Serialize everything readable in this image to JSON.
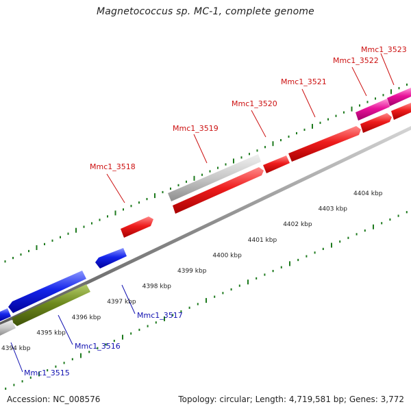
{
  "title": "Magnetococcus sp. MC-1, complete genome",
  "footer": {
    "accession": "Accession: NC_008576",
    "summary": "Topology: circular; Length: 4,719,581 bp; Genes: 3,772"
  },
  "colors": {
    "forward_cds": "#e8121a",
    "forward_other": "#e8129a",
    "reverse_cds": "#1020e0",
    "reverse_other": "#6e8a1e",
    "pseudo": "#c8c8c8",
    "backbone": "#8c8c8c",
    "ticks": "#1d7a1d",
    "forward_label": "#cc1010",
    "reverse_label": "#1010b0"
  },
  "scale": {
    "unit": "kbp",
    "ticks": [
      4394,
      4395,
      4396,
      4397,
      4398,
      4399,
      4400,
      4401,
      4402,
      4403,
      4404
    ]
  },
  "labels": {
    "forward": [
      "Mmc1_3518",
      "Mmc1_3519",
      "Mmc1_3520",
      "Mmc1_3521",
      "Mmc1_3522",
      "Mmc1_3523"
    ],
    "reverse": [
      "Mmc1_3515",
      "Mmc1_3516",
      "Mmc1_3517"
    ]
  }
}
